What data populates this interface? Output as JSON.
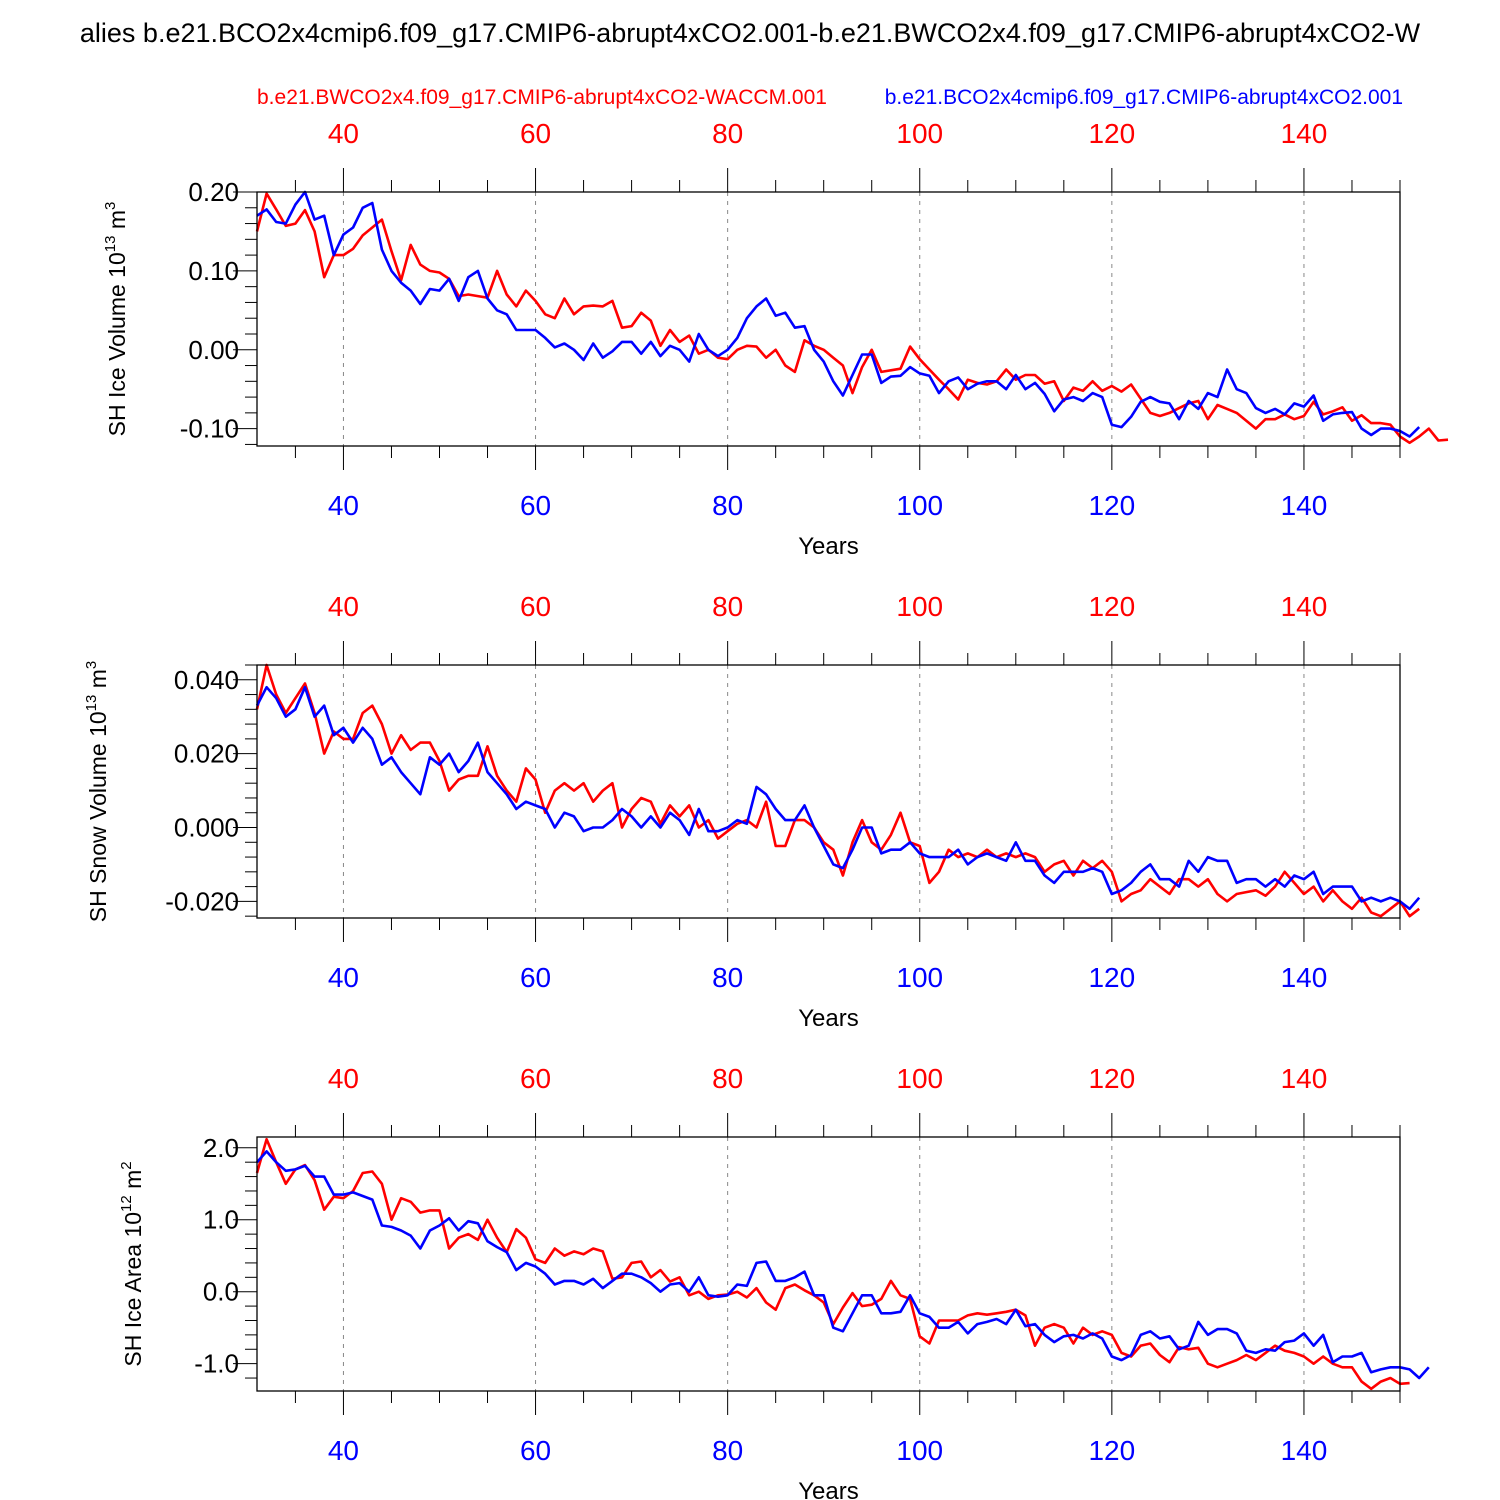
{
  "page_title": "alies b.e21.BCO2x4cmip6.f09_g17.CMIP6-abrupt4xCO2.001-b.e21.BWCO2x4.f09_g17.CMIP6-abrupt4xCO2-W",
  "legend": {
    "red_label": "b.e21.BWCO2x4.f09_g17.CMIP6-abrupt4xCO2-WACCM.001",
    "blue_label": "b.e21.BCO2x4cmip6.f09_g17.CMIP6-abrupt4xCO2.001"
  },
  "colors": {
    "red": "#ff0000",
    "blue": "#0000ff",
    "axis": "#000000",
    "grid": "#888888"
  },
  "chart_data": [
    {
      "type": "line",
      "title": "",
      "xlabel": "Years",
      "ylabel": "SH Ice Volume 10",
      "ylabel_exp": "13",
      "ylabel_unit": " m",
      "ylabel_unit_exp": "3",
      "xlim": [
        31,
        150
      ],
      "ylim": [
        -0.122,
        0.2
      ],
      "x_ticks": [
        "40",
        "60",
        "80",
        "100",
        "120",
        "140"
      ],
      "y_ticks": [
        {
          "value": 0.2,
          "label": "0.20"
        },
        {
          "value": 0.1,
          "label": "0.10"
        },
        {
          "value": 0.0,
          "label": "0.00"
        },
        {
          "value": -0.1,
          "label": "-0.10"
        }
      ],
      "series": [
        {
          "name": "red",
          "x_start": 31,
          "values": [
            0.15,
            0.198,
            0.178,
            0.157,
            0.16,
            0.177,
            0.15,
            0.092,
            0.12,
            0.12,
            0.128,
            0.145,
            0.155,
            0.165,
            0.125,
            0.088,
            0.133,
            0.108,
            0.1,
            0.098,
            0.09,
            0.068,
            0.07,
            0.068,
            0.066,
            0.1,
            0.07,
            0.055,
            0.075,
            0.062,
            0.045,
            0.04,
            0.065,
            0.045,
            0.055,
            0.056,
            0.055,
            0.062,
            0.028,
            0.03,
            0.047,
            0.037,
            0.005,
            0.025,
            0.01,
            0.018,
            -0.005,
            0.0,
            -0.01,
            -0.012,
            0.0,
            0.005,
            0.004,
            -0.01,
            0.0,
            -0.02,
            -0.028,
            0.012,
            0.005,
            0.0,
            -0.01,
            -0.02,
            -0.055,
            -0.022,
            0.0,
            -0.028,
            -0.026,
            -0.024,
            0.004,
            -0.012,
            -0.025,
            -0.038,
            -0.05,
            -0.063,
            -0.038,
            -0.042,
            -0.044,
            -0.04,
            -0.025,
            -0.038,
            -0.032,
            -0.032,
            -0.043,
            -0.04,
            -0.065,
            -0.048,
            -0.052,
            -0.04,
            -0.052,
            -0.046,
            -0.053,
            -0.044,
            -0.062,
            -0.08,
            -0.084,
            -0.08,
            -0.074,
            -0.068,
            -0.065,
            -0.088,
            -0.07,
            -0.075,
            -0.08,
            -0.09,
            -0.1,
            -0.088,
            -0.088,
            -0.082,
            -0.088,
            -0.084,
            -0.066,
            -0.082,
            -0.078,
            -0.073,
            -0.09,
            -0.083,
            -0.093,
            -0.093,
            -0.095,
            -0.11,
            -0.118,
            -0.11,
            -0.1,
            -0.115,
            -0.114
          ]
        },
        {
          "name": "blue",
          "x_start": 31,
          "values": [
            0.17,
            0.178,
            0.162,
            0.16,
            0.184,
            0.2,
            0.165,
            0.17,
            0.12,
            0.146,
            0.155,
            0.18,
            0.186,
            0.127,
            0.1,
            0.085,
            0.075,
            0.058,
            0.077,
            0.075,
            0.09,
            0.062,
            0.092,
            0.1,
            0.065,
            0.05,
            0.045,
            0.025,
            0.025,
            0.025,
            0.015,
            0.003,
            0.008,
            0.0,
            -0.013,
            0.008,
            -0.01,
            -0.002,
            0.01,
            0.01,
            -0.005,
            0.01,
            -0.008,
            0.005,
            0.0,
            -0.015,
            0.02,
            0.0,
            -0.008,
            0.0,
            0.015,
            0.04,
            0.055,
            0.065,
            0.043,
            0.047,
            0.028,
            0.03,
            0.0,
            -0.015,
            -0.04,
            -0.058,
            -0.032,
            -0.006,
            -0.006,
            -0.042,
            -0.034,
            -0.033,
            -0.022,
            -0.03,
            -0.033,
            -0.055,
            -0.04,
            -0.035,
            -0.05,
            -0.043,
            -0.04,
            -0.04,
            -0.05,
            -0.032,
            -0.05,
            -0.042,
            -0.056,
            -0.078,
            -0.063,
            -0.06,
            -0.065,
            -0.055,
            -0.06,
            -0.095,
            -0.098,
            -0.085,
            -0.066,
            -0.06,
            -0.066,
            -0.068,
            -0.088,
            -0.065,
            -0.075,
            -0.055,
            -0.06,
            -0.025,
            -0.05,
            -0.055,
            -0.074,
            -0.08,
            -0.075,
            -0.082,
            -0.068,
            -0.072,
            -0.058,
            -0.09,
            -0.082,
            -0.08,
            -0.079,
            -0.1,
            -0.108,
            -0.1,
            -0.1,
            -0.103,
            -0.11,
            -0.098
          ]
        }
      ]
    },
    {
      "type": "line",
      "title": "",
      "xlabel": "Years",
      "ylabel": "SH Snow Volume 10",
      "ylabel_exp": "13",
      "ylabel_unit": " m",
      "ylabel_unit_exp": "3",
      "xlim": [
        31,
        150
      ],
      "ylim": [
        -0.0245,
        0.044
      ],
      "x_ticks": [
        "40",
        "60",
        "80",
        "100",
        "120",
        "140"
      ],
      "y_ticks": [
        {
          "value": 0.04,
          "label": "0.040"
        },
        {
          "value": 0.02,
          "label": "0.020"
        },
        {
          "value": 0.0,
          "label": "0.000"
        },
        {
          "value": -0.02,
          "label": "-0.020"
        }
      ],
      "series": [
        {
          "name": "red",
          "x_start": 31,
          "values": [
            0.032,
            0.044,
            0.036,
            0.031,
            0.035,
            0.039,
            0.031,
            0.02,
            0.026,
            0.024,
            0.024,
            0.031,
            0.033,
            0.028,
            0.02,
            0.025,
            0.021,
            0.023,
            0.023,
            0.018,
            0.01,
            0.013,
            0.014,
            0.014,
            0.022,
            0.014,
            0.01,
            0.007,
            0.016,
            0.013,
            0.004,
            0.01,
            0.012,
            0.01,
            0.012,
            0.007,
            0.01,
            0.012,
            0.0,
            0.005,
            0.008,
            0.007,
            0.001,
            0.006,
            0.003,
            0.006,
            0.0,
            0.002,
            -0.003,
            -0.001,
            0.001,
            0.002,
            0.0,
            0.007,
            -0.005,
            -0.005,
            0.002,
            0.002,
            0.0,
            -0.004,
            -0.006,
            -0.013,
            -0.004,
            0.002,
            -0.004,
            -0.006,
            -0.002,
            0.004,
            -0.004,
            -0.005,
            -0.015,
            -0.012,
            -0.006,
            -0.008,
            -0.007,
            -0.008,
            -0.006,
            -0.008,
            -0.007,
            -0.008,
            -0.007,
            -0.008,
            -0.012,
            -0.01,
            -0.009,
            -0.013,
            -0.009,
            -0.011,
            -0.009,
            -0.012,
            -0.02,
            -0.018,
            -0.017,
            -0.014,
            -0.016,
            -0.018,
            -0.014,
            -0.014,
            -0.016,
            -0.014,
            -0.018,
            -0.02,
            -0.018,
            -0.0175,
            -0.017,
            -0.0185,
            -0.016,
            -0.012,
            -0.015,
            -0.018,
            -0.016,
            -0.02,
            -0.017,
            -0.02,
            -0.022,
            -0.019,
            -0.023,
            -0.024,
            -0.022,
            -0.02,
            -0.024,
            -0.022
          ]
        },
        {
          "name": "blue",
          "x_start": 31,
          "values": [
            0.033,
            0.038,
            0.035,
            0.03,
            0.032,
            0.038,
            0.03,
            0.033,
            0.025,
            0.027,
            0.023,
            0.027,
            0.024,
            0.017,
            0.019,
            0.015,
            0.012,
            0.009,
            0.019,
            0.017,
            0.02,
            0.015,
            0.018,
            0.023,
            0.015,
            0.012,
            0.009,
            0.005,
            0.007,
            0.006,
            0.005,
            0.0,
            0.004,
            0.003,
            -0.001,
            0.0,
            0.0,
            0.002,
            0.005,
            0.003,
            0.0,
            0.003,
            0.0,
            0.004,
            0.002,
            -0.002,
            0.005,
            -0.001,
            -0.001,
            0.0,
            0.002,
            0.001,
            0.011,
            0.009,
            0.005,
            0.002,
            0.002,
            0.006,
            0.0,
            -0.005,
            -0.01,
            -0.011,
            -0.006,
            0.0,
            0.0,
            -0.007,
            -0.006,
            -0.006,
            -0.004,
            -0.007,
            -0.008,
            -0.008,
            -0.008,
            -0.006,
            -0.01,
            -0.008,
            -0.007,
            -0.008,
            -0.009,
            -0.004,
            -0.009,
            -0.009,
            -0.013,
            -0.015,
            -0.012,
            -0.012,
            -0.012,
            -0.011,
            -0.012,
            -0.018,
            -0.017,
            -0.015,
            -0.012,
            -0.01,
            -0.014,
            -0.014,
            -0.016,
            -0.009,
            -0.012,
            -0.008,
            -0.009,
            -0.009,
            -0.015,
            -0.014,
            -0.014,
            -0.016,
            -0.014,
            -0.016,
            -0.013,
            -0.014,
            -0.012,
            -0.018,
            -0.016,
            -0.016,
            -0.016,
            -0.02,
            -0.019,
            -0.02,
            -0.019,
            -0.02,
            -0.022,
            -0.019
          ]
        }
      ]
    },
    {
      "type": "line",
      "title": "",
      "xlabel": "Years",
      "ylabel": "SH Ice Area 10",
      "ylabel_exp": "12",
      "ylabel_unit": " m",
      "ylabel_unit_exp": "2",
      "xlim": [
        31,
        150
      ],
      "ylim": [
        -1.38,
        2.15
      ],
      "x_ticks": [
        "40",
        "60",
        "80",
        "100",
        "120",
        "140"
      ],
      "y_ticks": [
        {
          "value": 2.0,
          "label": "2.0"
        },
        {
          "value": 1.0,
          "label": "1.0"
        },
        {
          "value": 0.0,
          "label": "0.0"
        },
        {
          "value": -1.0,
          "label": "-1.0"
        }
      ],
      "series": [
        {
          "name": "red",
          "x_start": 31,
          "values": [
            1.65,
            2.12,
            1.8,
            1.5,
            1.7,
            1.76,
            1.55,
            1.14,
            1.32,
            1.3,
            1.4,
            1.65,
            1.67,
            1.5,
            1.0,
            1.3,
            1.25,
            1.1,
            1.13,
            1.13,
            0.6,
            0.75,
            0.8,
            0.72,
            1.0,
            0.75,
            0.55,
            0.87,
            0.75,
            0.45,
            0.4,
            0.6,
            0.5,
            0.56,
            0.52,
            0.6,
            0.56,
            0.18,
            0.2,
            0.4,
            0.42,
            0.2,
            0.3,
            0.14,
            0.2,
            -0.05,
            0.0,
            -0.1,
            -0.05,
            -0.04,
            0.0,
            -0.08,
            0.05,
            -0.15,
            -0.25,
            0.05,
            0.1,
            0.02,
            -0.05,
            -0.15,
            -0.45,
            -0.22,
            -0.02,
            -0.2,
            -0.18,
            -0.1,
            0.15,
            -0.05,
            -0.1,
            -0.62,
            -0.72,
            -0.4,
            -0.4,
            -0.4,
            -0.33,
            -0.3,
            -0.32,
            -0.3,
            -0.28,
            -0.25,
            -0.33,
            -0.75,
            -0.5,
            -0.45,
            -0.5,
            -0.72,
            -0.5,
            -0.6,
            -0.55,
            -0.6,
            -0.85,
            -0.9,
            -0.75,
            -0.72,
            -0.88,
            -0.98,
            -0.77,
            -0.8,
            -0.78,
            -1.0,
            -1.05,
            -1.0,
            -0.95,
            -0.88,
            -0.95,
            -0.85,
            -0.75,
            -0.82,
            -0.85,
            -0.9,
            -1.0,
            -0.9,
            -1.0,
            -1.05,
            -1.05,
            -1.25,
            -1.35,
            -1.25,
            -1.2,
            -1.28,
            -1.27
          ]
        },
        {
          "name": "blue",
          "x_start": 31,
          "values": [
            1.8,
            1.95,
            1.8,
            1.68,
            1.7,
            1.75,
            1.6,
            1.6,
            1.35,
            1.35,
            1.38,
            1.33,
            1.28,
            0.92,
            0.9,
            0.85,
            0.78,
            0.6,
            0.85,
            0.92,
            1.02,
            0.85,
            0.98,
            0.95,
            0.7,
            0.62,
            0.55,
            0.3,
            0.4,
            0.35,
            0.25,
            0.1,
            0.15,
            0.15,
            0.1,
            0.18,
            0.05,
            0.15,
            0.25,
            0.25,
            0.2,
            0.12,
            0.0,
            0.1,
            0.12,
            0.0,
            0.2,
            -0.05,
            -0.07,
            -0.05,
            0.1,
            0.08,
            0.4,
            0.42,
            0.15,
            0.15,
            0.2,
            0.28,
            -0.05,
            -0.05,
            -0.5,
            -0.55,
            -0.3,
            -0.05,
            -0.05,
            -0.3,
            -0.3,
            -0.28,
            -0.05,
            -0.3,
            -0.35,
            -0.5,
            -0.5,
            -0.42,
            -0.58,
            -0.45,
            -0.42,
            -0.38,
            -0.45,
            -0.25,
            -0.48,
            -0.45,
            -0.6,
            -0.7,
            -0.62,
            -0.6,
            -0.65,
            -0.58,
            -0.65,
            -0.9,
            -0.95,
            -0.88,
            -0.6,
            -0.55,
            -0.65,
            -0.62,
            -0.8,
            -0.75,
            -0.42,
            -0.6,
            -0.52,
            -0.52,
            -0.58,
            -0.82,
            -0.85,
            -0.8,
            -0.82,
            -0.7,
            -0.68,
            -0.58,
            -0.75,
            -0.6,
            -0.98,
            -0.9,
            -0.9,
            -0.85,
            -1.12,
            -1.08,
            -1.05,
            -1.05,
            -1.08,
            -1.2,
            -1.05
          ]
        }
      ]
    }
  ]
}
